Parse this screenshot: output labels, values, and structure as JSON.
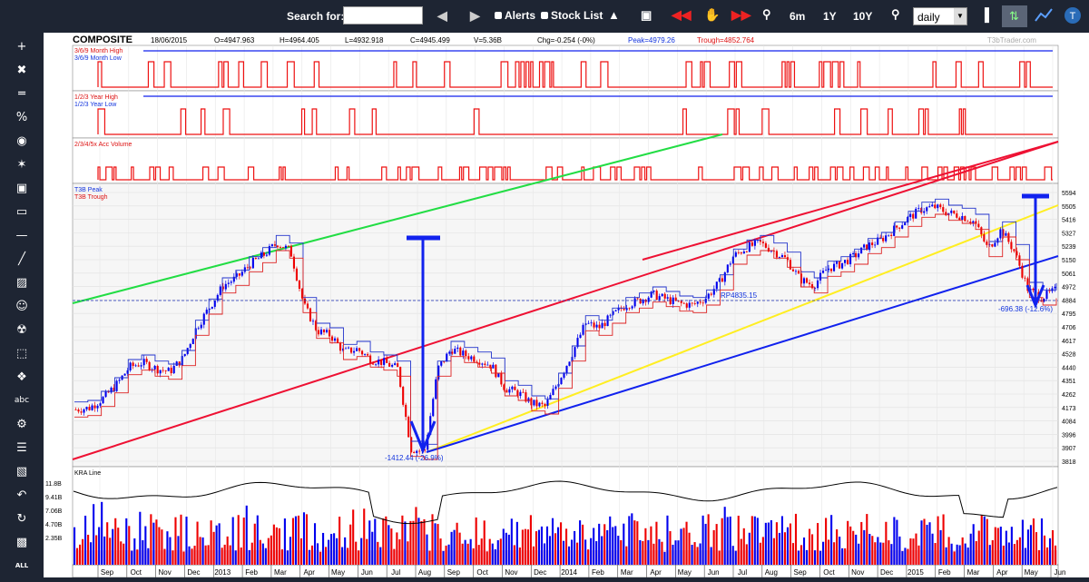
{
  "toolbar": {
    "search_label": "Search for:",
    "search_value": "",
    "alerts_label": "Alerts",
    "stocklist_label": "Stock List",
    "range_6m": "6m",
    "range_1y": "1Y",
    "range_10y": "10Y",
    "interval_value": "daily",
    "icons": [
      "left-arrow-icon",
      "right-arrow-icon",
      "bell-icon",
      "camera-icon",
      "rewind-icon",
      "hand-icon",
      "fast-forward-icon",
      "zoom-in-icon",
      "zoom-out-icon",
      "indicator-icon",
      "compare-icon",
      "line-chart-icon",
      "ticker-icon"
    ]
  },
  "sidebar": {
    "icons": [
      "plus-icon",
      "cross-line-icon",
      "horizontal-lines-icon",
      "percent-icon",
      "target-icon",
      "magic-wand-icon",
      "save-icon",
      "comment-icon",
      "horizontal-line-icon",
      "trend-line-icon",
      "hatch-icon",
      "person-icon",
      "bell-icon",
      "dotted-box-icon",
      "stars-icon",
      "abc-text-icon",
      "settings-icon",
      "layers-icon",
      "pattern-icon",
      "undo-icon",
      "refresh-icon",
      "image-icon",
      "all-icon"
    ],
    "text_icon": "abc",
    "all_label": "ALL"
  },
  "header": {
    "symbol": "COMPOSITE",
    "date": "18/06/2015",
    "open": "O=4947.963",
    "high": "H=4964.405",
    "low": "L=4932.918",
    "close": "C=4945.499",
    "volume": "V=5.36B",
    "change": "Chg=-0.254 (-0%)",
    "peak": "Peak=4979.26",
    "trough": "Trough=4852.764",
    "watermark": "T3bTrader.com"
  },
  "panels": {
    "month_high": "3/6/9 Month High",
    "month_low": "3/6/9 Month Low",
    "year_high": "1/2/3 Year High",
    "year_low": "1/2/3 Year Low",
    "acc_volume": "2/3/4/5x Acc Volume",
    "t3b_peak": "T3B Peak",
    "t3b_trough": "T3B Trough",
    "kra_line": "KRA Line"
  },
  "annotations": {
    "drop1": "-1412.44 (-26.9%)",
    "drop2": "-696.38 (-12.6%)",
    "rp_label": "RP4835.15"
  },
  "colors": {
    "price_up": "#0000ee",
    "price_down": "#ee0000",
    "red_channel": "#ee1133",
    "green_trend": "#22dd44",
    "yellow_trend": "#ffee22",
    "blue_trend": "#1122ee"
  },
  "chart_data": {
    "type": "line",
    "title": "COMPOSITE",
    "y_ticks": [
      "5594",
      "5505",
      "5416",
      "5327",
      "5239",
      "5150",
      "5061",
      "4972",
      "4884",
      "4795",
      "4706",
      "4617",
      "4528",
      "4440",
      "4351",
      "4262",
      "4173",
      "4084",
      "3996",
      "3907",
      "3818"
    ],
    "ylim": [
      3818,
      5594
    ],
    "volume_ticks": [
      "11.8B",
      "9.41B",
      "7.06B",
      "4.70B",
      "2.35B"
    ],
    "x_labels": [
      "Sep",
      "Oct",
      "Nov",
      "Dec",
      "2013",
      "Feb",
      "Mar",
      "Apr",
      "May",
      "Jun",
      "Jul",
      "Aug",
      "Sep",
      "Oct",
      "Nov",
      "Dec",
      "2014",
      "Feb",
      "Mar",
      "Apr",
      "May",
      "Jun",
      "Jul",
      "Aug",
      "Sep",
      "Oct",
      "Nov",
      "Dec",
      "2015",
      "Feb",
      "Mar",
      "Apr",
      "May",
      "Jun"
    ],
    "x_range": [
      "Aug 2012",
      "Jun 2015"
    ],
    "series": [
      {
        "values": [
          4160,
          4170,
          4230,
          4320,
          4440,
          4470,
          4430,
          4410,
          4500,
          4700,
          4840,
          4980,
          5030,
          5120,
          5180,
          5260,
          5210,
          4850,
          4680,
          4650,
          4540,
          4560,
          4490,
          4470,
          4430,
          3900,
          3880,
          4430,
          4560,
          4520,
          4490,
          4450,
          4300,
          4270,
          4200,
          4180,
          4350,
          4530,
          4730,
          4700,
          4780,
          4850,
          4880,
          4920,
          4890,
          4860,
          4850,
          4900,
          5000,
          5170,
          5230,
          5260,
          5210,
          5150,
          5020,
          4980,
          5090,
          5120,
          5170,
          5240,
          5280,
          5350,
          5420,
          5480,
          5500,
          5460,
          5440,
          5400,
          5220,
          5350,
          5200,
          4950,
          4900,
          4945
        ]
      }
    ],
    "reference_line": 4835.15
  }
}
